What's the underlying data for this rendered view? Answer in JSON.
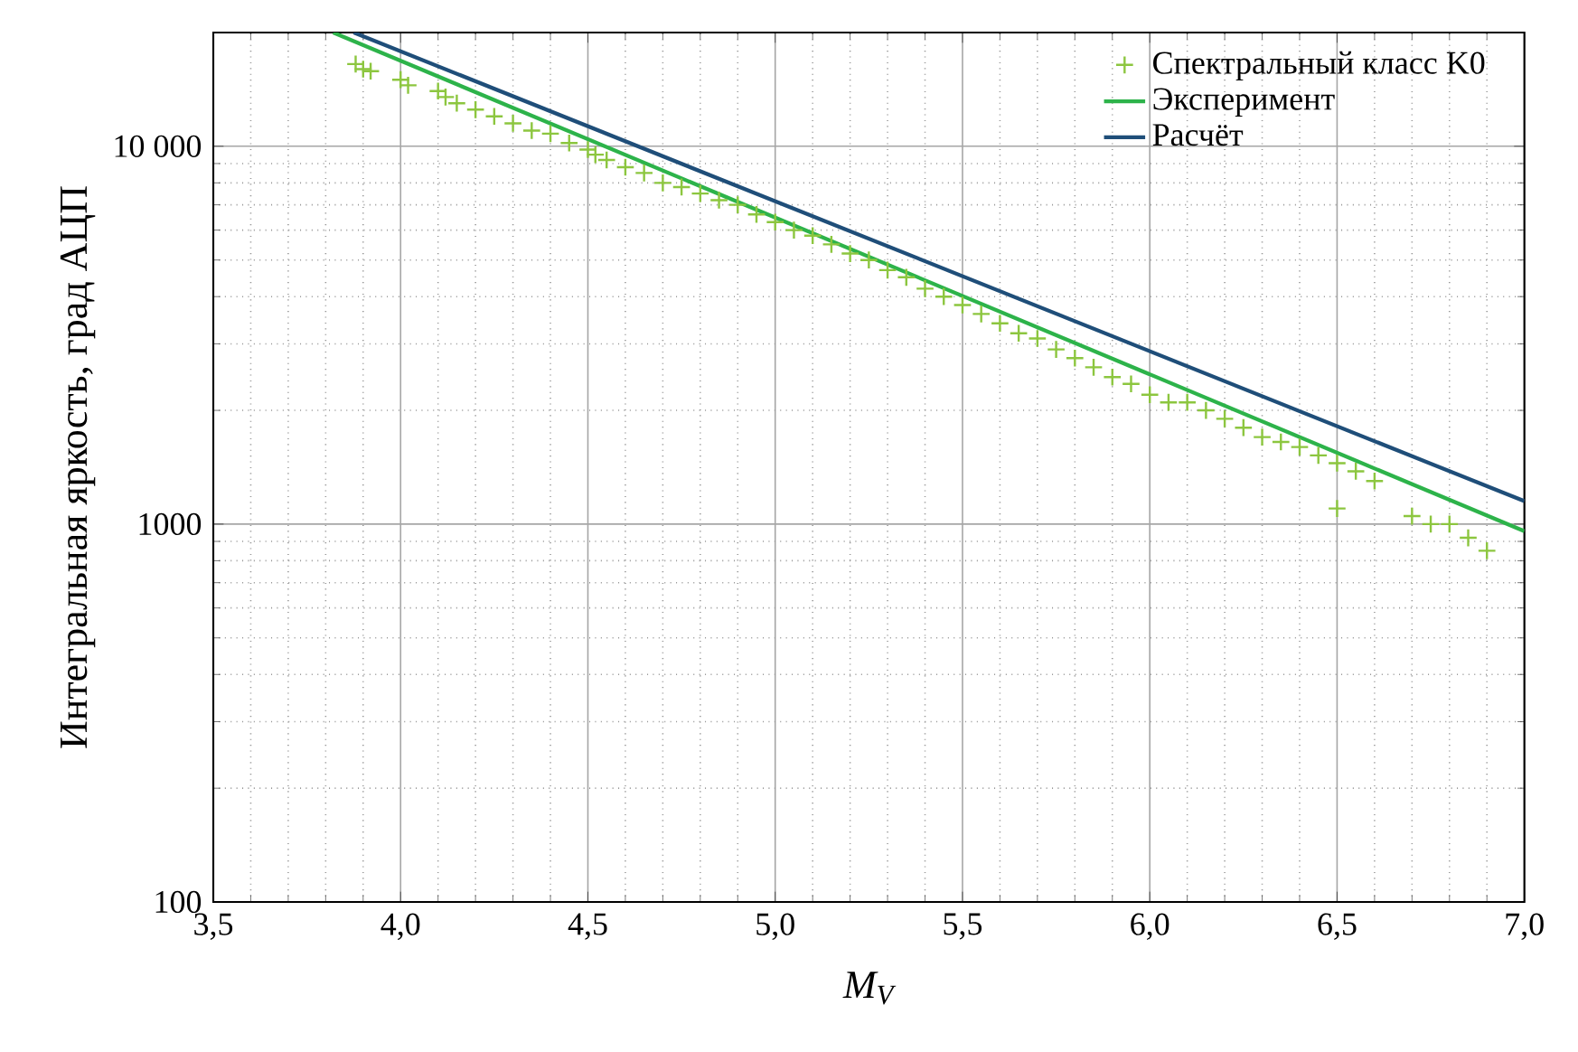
{
  "chart_data": {
    "type": "scatter",
    "xlabel": "M$_{V}$",
    "ylabel": "Интегральная  яркость, град АЦП",
    "xlim": [
      3.5,
      7.0
    ],
    "ylim": [
      100,
      20000
    ],
    "log": "y",
    "grid": true,
    "legend": "top right",
    "xticks": [
      {
        "value": 3.5,
        "label": "3,5"
      },
      {
        "value": 4.0,
        "label": "4,0"
      },
      {
        "value": 4.5,
        "label": "4,5"
      },
      {
        "value": 5.0,
        "label": "5,0"
      },
      {
        "value": 5.5,
        "label": "5,5"
      },
      {
        "value": 6.0,
        "label": "6,0"
      },
      {
        "value": 6.5,
        "label": "6,5"
      },
      {
        "value": 7.0,
        "label": "7,0"
      }
    ],
    "yticks": [
      100,
      1000,
      {
        "value": 10000,
        "label": "10 000"
      }
    ],
    "series": [
      {
        "name": "Спектральный класс K0",
        "marker": "cross",
        "color": "#8cc63f",
        "x": [
          3.88,
          3.9,
          3.92,
          4.0,
          4.02,
          4.1,
          4.12,
          4.15,
          4.2,
          4.25,
          4.3,
          4.35,
          4.4,
          4.45,
          4.5,
          4.52,
          4.55,
          4.6,
          4.65,
          4.7,
          4.75,
          4.8,
          4.85,
          4.9,
          4.95,
          5.0,
          5.05,
          5.1,
          5.15,
          5.2,
          5.25,
          5.3,
          5.35,
          5.4,
          5.45,
          5.5,
          5.55,
          5.6,
          5.65,
          5.7,
          5.75,
          5.8,
          5.85,
          5.9,
          5.95,
          6.0,
          6.05,
          6.1,
          6.15,
          6.2,
          6.25,
          6.3,
          6.35,
          6.4,
          6.45,
          6.5,
          6.55,
          6.6,
          6.7,
          6.75,
          6.8,
          6.85,
          6.9,
          6.5
        ],
        "values": [
          16500,
          16000,
          15800,
          15000,
          14500,
          14000,
          13500,
          13000,
          12500,
          12000,
          11500,
          11000,
          10800,
          10200,
          9800,
          9500,
          9200,
          8800,
          8500,
          8000,
          7800,
          7500,
          7200,
          7000,
          6600,
          6300,
          6000,
          5800,
          5500,
          5200,
          5000,
          4700,
          4500,
          4200,
          4000,
          3800,
          3600,
          3400,
          3200,
          3100,
          2900,
          2750,
          2600,
          2450,
          2350,
          2200,
          2100,
          2100,
          2000,
          1900,
          1800,
          1700,
          1650,
          1600,
          1520,
          1450,
          1380,
          1300,
          1050,
          1000,
          1000,
          920,
          850,
          1100
        ]
      },
      {
        "name": "Эксперимент",
        "type": "line",
        "marker": "none",
        "color": "#2db34a",
        "x": [
          3.82,
          7.0
        ],
        "values": [
          20000,
          958
        ]
      },
      {
        "name": "Расчёт",
        "type": "line",
        "marker": "none",
        "color": "#1f4e79",
        "x": [
          3.875,
          7.0
        ],
        "values": [
          20000,
          1150
        ]
      }
    ]
  }
}
